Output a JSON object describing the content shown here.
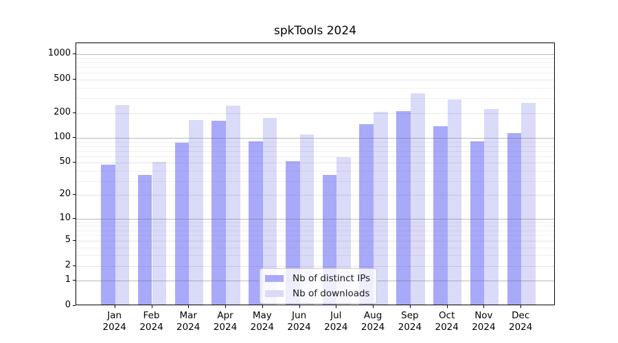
{
  "title": "spkTools 2024",
  "chart_data": {
    "type": "bar",
    "title": "spkTools 2024",
    "xlabel": "",
    "ylabel": "",
    "scale": "log1p",
    "ylim": [
      0,
      1360
    ],
    "grid": "on, drawn above bars",
    "legend_position": "bottom-center",
    "categories": [
      "Jan 2024",
      "Feb 2024",
      "Mar 2024",
      "Apr 2024",
      "May 2024",
      "Jun 2024",
      "Jul 2024",
      "Aug 2024",
      "Sep 2024",
      "Oct 2024",
      "Nov 2024",
      "Dec 2024"
    ],
    "series": [
      {
        "name": "Nb of distinct IPs",
        "color": "#a9a9fa",
        "values": [
          46,
          34,
          85,
          154,
          88,
          50,
          34,
          142,
          202,
          134,
          88,
          111
        ]
      },
      {
        "name": "Nb of downloads",
        "color": "#dadaf9",
        "values": [
          240,
          49,
          158,
          235,
          168,
          107,
          56,
          200,
          333,
          279,
          214,
          254
        ]
      }
    ],
    "y_axis": {
      "tick_values": [
        1000,
        500,
        200,
        100,
        50,
        20,
        10,
        5,
        2,
        1,
        0
      ],
      "tick_labels": [
        "1000",
        "500",
        "200",
        "100",
        "50",
        "20",
        "10",
        "5",
        "2",
        "1",
        "0"
      ],
      "grid_major": [
        1,
        10,
        100,
        1000
      ],
      "grid_sub": [
        2,
        5,
        20,
        50,
        200,
        500
      ],
      "grid_minor": [
        3,
        4,
        6,
        7,
        8,
        9,
        30,
        40,
        60,
        70,
        80,
        90,
        300,
        400,
        600,
        700,
        800,
        900
      ]
    },
    "colors": {
      "background": "#ffffff",
      "spine": "#000000",
      "grid_major": "#a6a6a6",
      "grid_sub": "#e2e2e2",
      "grid_minor": "#ebebeb",
      "legend_border": "#cccccc"
    }
  }
}
